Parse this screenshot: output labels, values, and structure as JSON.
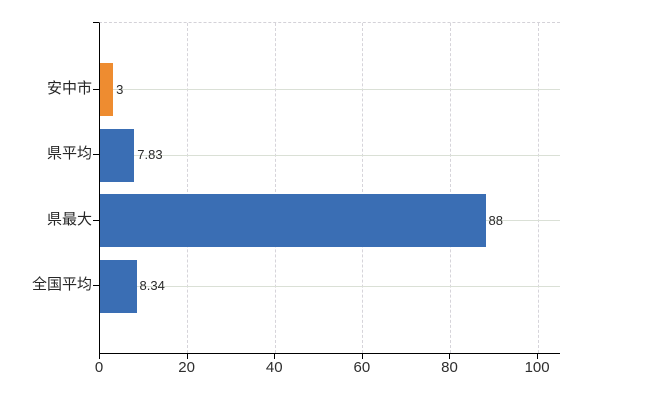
{
  "chart_data": {
    "type": "bar",
    "orientation": "horizontal",
    "title": "",
    "xlabel": "",
    "ylabel": "",
    "categories": [
      "安中市",
      "県平均",
      "県最大",
      "全国平均"
    ],
    "values": [
      3,
      7.83,
      88,
      8.34
    ],
    "value_labels": [
      "3",
      "7.83",
      "88",
      "8.34"
    ],
    "bar_colors": [
      "#EE8C30",
      "#3A6EB4",
      "#3A6EB4",
      "#3A6EB4"
    ],
    "highlighted_category": "安中市",
    "xlim": [
      0,
      105
    ],
    "xticks": [
      0,
      20,
      40,
      60,
      80,
      100
    ],
    "grid": {
      "vertical": "dashed",
      "horizontal": "solid"
    },
    "legend_position": "none"
  },
  "colors": {
    "bar_blue": "#3A6EB4",
    "bar_orange": "#EE8C30",
    "axis": "#000000",
    "grid_vertical": "#D6D4DA",
    "grid_horizontal": "#DAE0D6",
    "plot_border_top_dashed": "#D4D2D8",
    "tick_text": "#2E2E2E",
    "background": "#FFFFFF"
  }
}
